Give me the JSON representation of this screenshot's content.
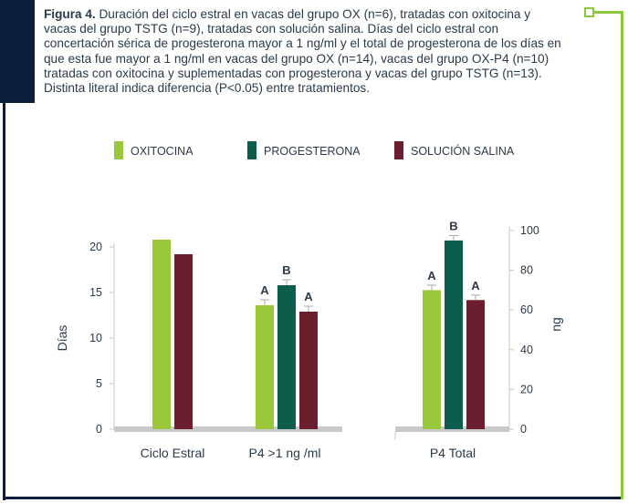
{
  "caption": {
    "label": "Figura 4.",
    "text": "Duración del ciclo estral en vacas del grupo OX (n=6), tratadas con oxitocina y  vacas del grupo TSTG (n=9), tratadas con solución salina. Días del ciclo estral con concertación sérica de progesterona mayor a 1 ng/ml y el total de progesterona de los días en que esta fue mayor a 1 ng/ml en vacas del grupo OX (n=14), vacas del grupo OX-P4 (n=10) tratadas con oxitocina y suplementadas con progesterona y  vacas del grupo TSTG (n=13). Distinta literal indica diferencia (P<0.05) entre tratamientos."
  },
  "colors": {
    "oxitocina": "#9ac73c",
    "progesterona": "#0c5d4c",
    "salina": "#6b1f2e",
    "axis": "#c7c9cb",
    "navy": "#0b1f3a",
    "green_frame": "#8dc63f"
  },
  "chart_data": {
    "type": "bar",
    "legend_position": "top",
    "series": [
      {
        "name": "OXITOCINA",
        "color": "#9ac73c"
      },
      {
        "name": "PROGESTERONA",
        "color": "#0c5d4c"
      },
      {
        "name": "SOLUCIÓN SALINA",
        "color": "#6b1f2e"
      }
    ],
    "groups": [
      {
        "category": "Ciclo Estral",
        "axis": "left",
        "bars": [
          {
            "series": "OXITOCINA",
            "value": 20.8,
            "error": 0,
            "letter": ""
          },
          {
            "series": "SOLUCIÓN SALINA",
            "value": 19.2,
            "error": 0,
            "letter": ""
          }
        ]
      },
      {
        "category": "P4 >1 ng /ml",
        "axis": "left",
        "bars": [
          {
            "series": "OXITOCINA",
            "value": 13.6,
            "error": 0.6,
            "letter": "A"
          },
          {
            "series": "PROGESTERONA",
            "value": 15.8,
            "error": 0.6,
            "letter": "B"
          },
          {
            "series": "SOLUCIÓN SALINA",
            "value": 12.9,
            "error": 0.6,
            "letter": "A"
          }
        ]
      },
      {
        "category": "P4 Total",
        "axis": "right",
        "bars": [
          {
            "series": "OXITOCINA",
            "value": 70,
            "error": 2.5,
            "letter": "A"
          },
          {
            "series": "PROGESTERONA",
            "value": 95,
            "error": 2.5,
            "letter": "B"
          },
          {
            "series": "SOLUCIÓN SALINA",
            "value": 65,
            "error": 2.5,
            "letter": "A"
          }
        ]
      }
    ],
    "y_left": {
      "label": "Días",
      "ylim": [
        0,
        20
      ],
      "ticks": [
        0,
        5,
        10,
        15,
        20
      ]
    },
    "y_right": {
      "label": "ng",
      "ylim": [
        0,
        100
      ],
      "ticks": [
        0,
        20,
        40,
        60,
        80,
        100
      ]
    },
    "grid": false
  }
}
